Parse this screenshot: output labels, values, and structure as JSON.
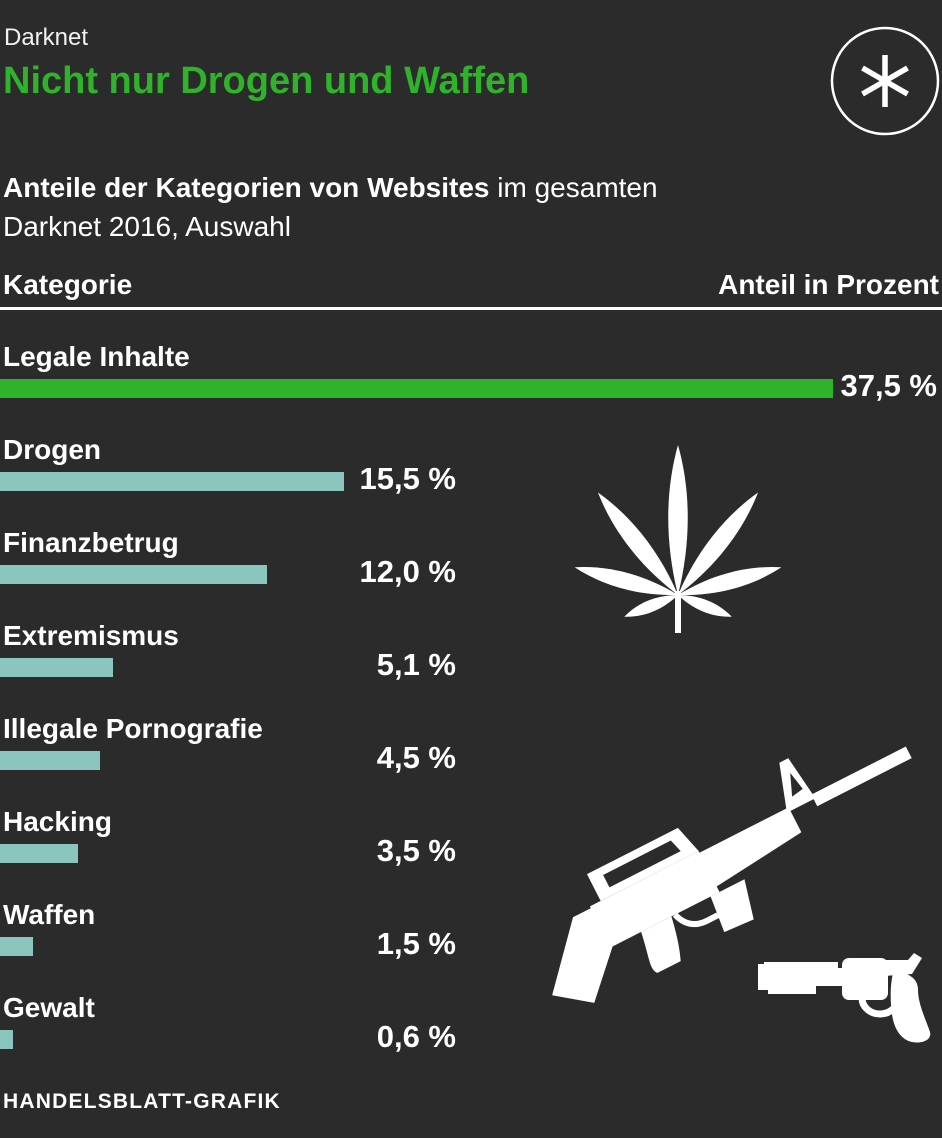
{
  "header": {
    "kicker": "Darknet",
    "title": "Nicht nur Drogen und Waffen"
  },
  "subtitle": {
    "line1_bold": "Anteile der Kategorien von Websites",
    "line1_rest": " im gesamten",
    "line2": "Darknet 2016, Auswahl"
  },
  "table_header": {
    "category": "Kategorie",
    "share": "Anteil in Prozent"
  },
  "chart_data": {
    "type": "bar",
    "orientation": "horizontal",
    "unit": "percent",
    "xmax": 37.5,
    "categories": [
      "Legale Inhalte",
      "Drogen",
      "Finanzbetrug",
      "Extremismus",
      "Illegale Pornografie",
      "Hacking",
      "Waffen",
      "Gewalt"
    ],
    "values": [
      37.5,
      15.5,
      12.0,
      5.1,
      4.5,
      3.5,
      1.5,
      0.6
    ],
    "value_labels": [
      "37,5 %",
      "15,5 %",
      "12,0 %",
      "5,1 %",
      "4,5 %",
      "3,5 %",
      "1,5 %",
      "0,6 %"
    ],
    "highlight_index": 0,
    "legend_position": "none",
    "grid": false,
    "decorative_icons": [
      "cannabis-leaf",
      "assault-rifle",
      "revolver"
    ]
  },
  "footer": {
    "credit": "HANDELSBLATT-GRAFIK"
  },
  "colors": {
    "background": "#2B2B2B",
    "text": "#FFFFFF",
    "accent_green": "#2FB32B",
    "bar_teal": "#8BC6BE"
  }
}
